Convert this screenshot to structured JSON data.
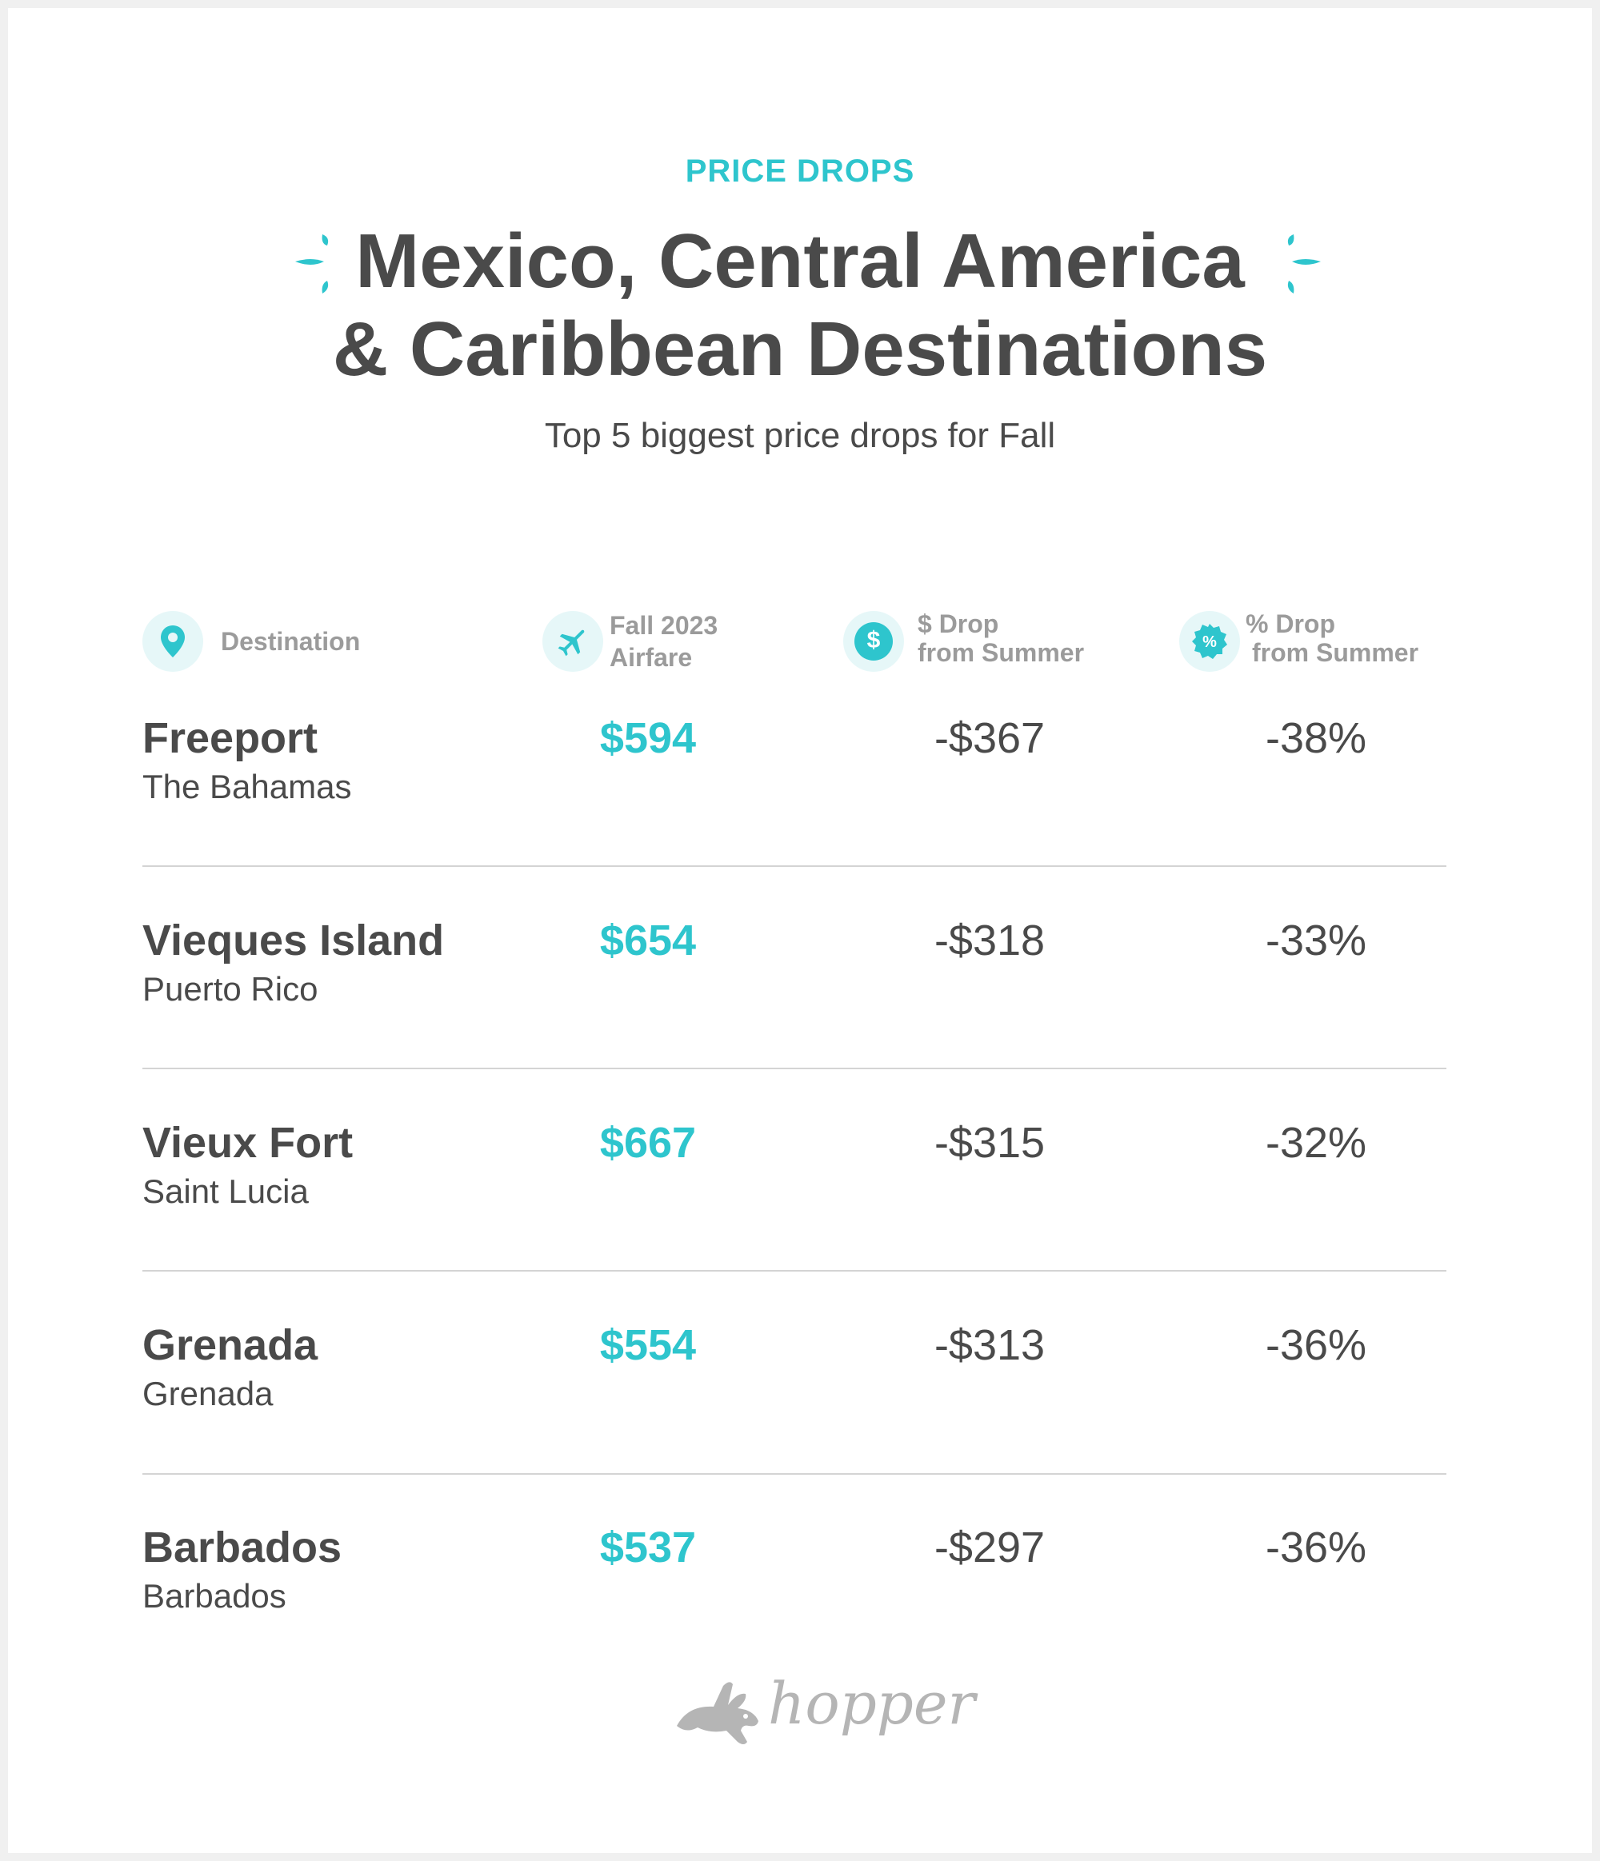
{
  "eyebrow": "PRICE DROPS",
  "title_line1": "Mexico, Central America",
  "title_line2": "& Caribbean Destinations",
  "subtitle": "Top 5 biggest price drops for Fall",
  "accent_color": "#2ec5cd",
  "headers": {
    "destination": {
      "icon": "location-pin-icon",
      "label": "Destination"
    },
    "airfare": {
      "icon": "airplane-icon",
      "label_line1": "Fall 2023",
      "label_line2": "Airfare"
    },
    "dollar_drop": {
      "icon": "dollar-icon",
      "label_line1": "$ Drop",
      "label_line2": "from Summer"
    },
    "percent_drop": {
      "icon": "percent-badge-icon",
      "label_line1": "% Drop",
      "label_line2": "from Summer"
    }
  },
  "rows": [
    {
      "city": "Freeport",
      "country": "The Bahamas",
      "airfare": "$594",
      "dollar_drop": "-$367",
      "percent_drop": "-38%"
    },
    {
      "city": "Vieques Island",
      "country": "Puerto Rico",
      "airfare": "$654",
      "dollar_drop": "-$318",
      "percent_drop": "-33%"
    },
    {
      "city": "Vieux Fort",
      "country": "Saint Lucia",
      "airfare": "$667",
      "dollar_drop": "-$315",
      "percent_drop": "-32%"
    },
    {
      "city": "Grenada",
      "country": "Grenada",
      "airfare": "$554",
      "dollar_drop": "-$313",
      "percent_drop": "-36%"
    },
    {
      "city": "Barbados",
      "country": "Barbados",
      "airfare": "$537",
      "dollar_drop": "-$297",
      "percent_drop": "-36%"
    }
  ],
  "brand": {
    "name": "hopper",
    "icon": "bunny-logo-icon"
  }
}
